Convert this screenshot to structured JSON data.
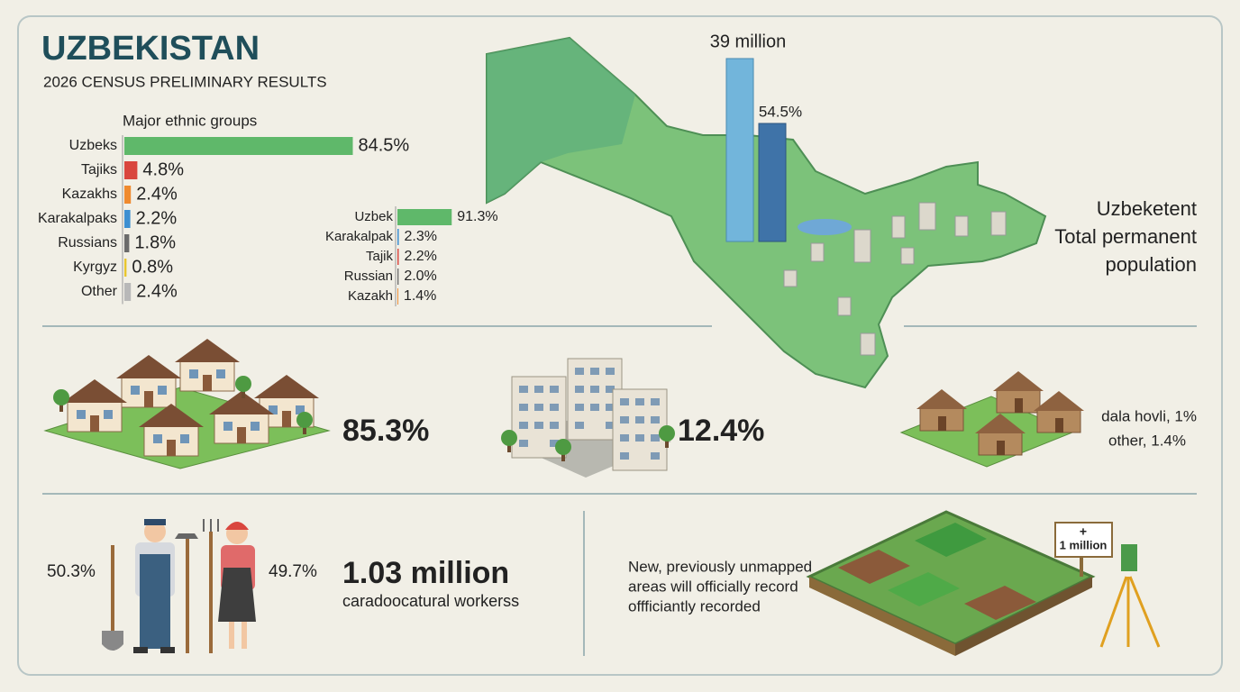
{
  "header": {
    "title": "UZBEKISTAN",
    "subtitle": "2026 CENSUS PRELIMINARY RESULTS"
  },
  "chart_data": [
    {
      "type": "bar",
      "orientation": "horizontal",
      "title": "Major ethnic groups",
      "categories": [
        "Uzbeks",
        "Tajiks",
        "Kazakhs",
        "Karakalpaks",
        "Russians",
        "Kyrgyz",
        "Other"
      ],
      "values": [
        84.5,
        4.8,
        2.4,
        2.2,
        1.8,
        0.8,
        2.4
      ],
      "value_labels": [
        "84.5%",
        "4.8%",
        "2.4%",
        "2.2%",
        "1.8%",
        "0.8%",
        "2.4%"
      ],
      "colors": [
        "#5fb86a",
        "#d9463e",
        "#ef8a2f",
        "#3d8fd1",
        "#6b6b6b",
        "#e8c62e",
        "#b8b8b8"
      ]
    },
    {
      "type": "bar",
      "orientation": "horizontal",
      "categories": [
        "Uzbek",
        "Karakalpak",
        "Tajik",
        "Russian",
        "Kazakh"
      ],
      "values": [
        91.3,
        2.3,
        2.2,
        2.0,
        1.4
      ],
      "value_labels": [
        "91.3%",
        "2.3%",
        "2.2%",
        "2.0%",
        "1.4%"
      ],
      "colors": [
        "#5fb86a",
        "#3d8fd1",
        "#d9463e",
        "#6b6b6b",
        "#ef8a2f"
      ]
    }
  ],
  "map": {
    "population_label": "39 million",
    "urban_label": "54.5%",
    "caption": [
      "Uzbeketent",
      "Total permanent",
      "population"
    ]
  },
  "housing": {
    "houses": "85.3%",
    "apartments": "12.4%",
    "other_lines": [
      "dala hovli, 1%",
      "other, 1.4%"
    ]
  },
  "workers": {
    "male": "50.3%",
    "female": "49.7%",
    "total": "1.03 million",
    "caption": "caradoocatural workerss"
  },
  "land": {
    "lines": [
      "New, previously unmapped",
      "areas will officially record",
      "offficiantly recorded"
    ],
    "sign": [
      "+",
      "1 million"
    ]
  }
}
